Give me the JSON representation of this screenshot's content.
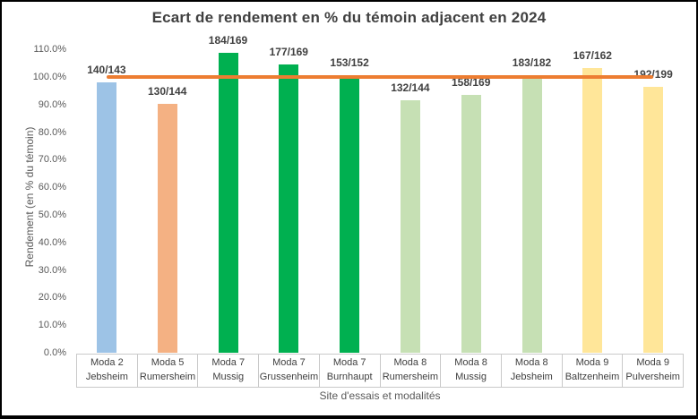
{
  "chart_data": {
    "type": "bar",
    "title": "Ecart de rendement en % du témoin adjacent en 2024",
    "xlabel": "Site d'essais et modalités",
    "ylabel": "Rendement (en % du témoin)",
    "ylim": [
      0,
      110
    ],
    "grid": false,
    "legend": "none",
    "yticks": [
      {
        "value": 110,
        "label": "110.0%"
      },
      {
        "value": 100,
        "label": "100.0%"
      },
      {
        "value": 90,
        "label": "90.0%"
      },
      {
        "value": 80,
        "label": "80.0%"
      },
      {
        "value": 70,
        "label": "70.0%"
      },
      {
        "value": 60,
        "label": "60.0%"
      },
      {
        "value": 50,
        "label": "50.0%"
      },
      {
        "value": 40,
        "label": "40.0%"
      },
      {
        "value": 30,
        "label": "30.0%"
      },
      {
        "value": 20,
        "label": "20.0%"
      },
      {
        "value": 10,
        "label": "10.0%"
      },
      {
        "value": 0,
        "label": "0.0%"
      }
    ],
    "reference_line": {
      "value_pct": 100,
      "color": "#ED7D31",
      "meaning": "témoin 100%"
    },
    "categories": [
      {
        "moda": "Moda 2",
        "site": "Jebsheim"
      },
      {
        "moda": "Moda 5",
        "site": "Rumersheim"
      },
      {
        "moda": "Moda 7",
        "site": "Mussig"
      },
      {
        "moda": "Moda 7",
        "site": "Grussenheim"
      },
      {
        "moda": "Moda 7",
        "site": "Burnhaupt"
      },
      {
        "moda": "Moda 8",
        "site": "Rumersheim"
      },
      {
        "moda": "Moda 8",
        "site": "Mussig"
      },
      {
        "moda": "Moda 8",
        "site": "Jebsheim"
      },
      {
        "moda": "Moda 9",
        "site": "Baltzenheim"
      },
      {
        "moda": "Moda 9",
        "site": "Pulversheim"
      }
    ],
    "bars": [
      {
        "label": "140/143",
        "value_pct": 97.9,
        "color": "#9DC3E6"
      },
      {
        "label": "130/144",
        "value_pct": 90.3,
        "color": "#F4B183"
      },
      {
        "label": "184/169",
        "value_pct": 108.9,
        "color": "#00B050"
      },
      {
        "label": "177/169",
        "value_pct": 104.7,
        "color": "#00B050"
      },
      {
        "label": "153/152",
        "value_pct": 100.7,
        "color": "#00B050"
      },
      {
        "label": "132/144",
        "value_pct": 91.7,
        "color": "#C6E0B4"
      },
      {
        "label": "158/169",
        "value_pct": 93.5,
        "color": "#C6E0B4"
      },
      {
        "label": "183/182",
        "value_pct": 100.5,
        "color": "#C6E0B4"
      },
      {
        "label": "167/162",
        "value_pct": 103.1,
        "color": "#FFE699"
      },
      {
        "label": "192/199",
        "value_pct": 96.5,
        "color": "#FFE699"
      }
    ],
    "colors": {
      "title_text": "#404040",
      "axis_text": "#595959",
      "data_label_text": "#404040",
      "reference_line": "#ED7D31",
      "table_border": "#C9C9C9",
      "frame_border": "#000000"
    }
  }
}
